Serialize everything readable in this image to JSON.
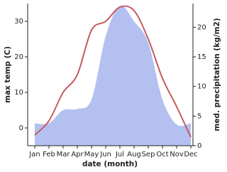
{
  "chart_data": {
    "type": "line-area",
    "categories": [
      "Jan",
      "Feb",
      "Mar",
      "Apr",
      "May",
      "Jun",
      "Jul",
      "Aug",
      "Sep",
      "Oct",
      "Nov",
      "Dec"
    ],
    "xlabel": "date (month)",
    "ylabel": "max temp (C)",
    "y2label": "med. precipitation (kg/m2)",
    "ylim": [
      -5,
      35
    ],
    "yticks": [
      0,
      10,
      20,
      30
    ],
    "y2lim": [
      0,
      24
    ],
    "y2ticks": [
      0,
      5,
      10,
      15,
      20
    ],
    "series": [
      {
        "name": "max temp",
        "color": "#c55a5d",
        "values": [
          -2,
          2,
          10,
          15,
          27.5,
          30,
          34,
          33,
          25,
          14,
          6,
          -2.6
        ]
      },
      {
        "name": "med. precipitation",
        "color": "#b4c0f0",
        "axis": "y2",
        "values": [
          3.8,
          3.8,
          6,
          6.2,
          7.8,
          18.5,
          23.6,
          21,
          17.4,
          7.8,
          3.6,
          3.8
        ]
      }
    ]
  }
}
